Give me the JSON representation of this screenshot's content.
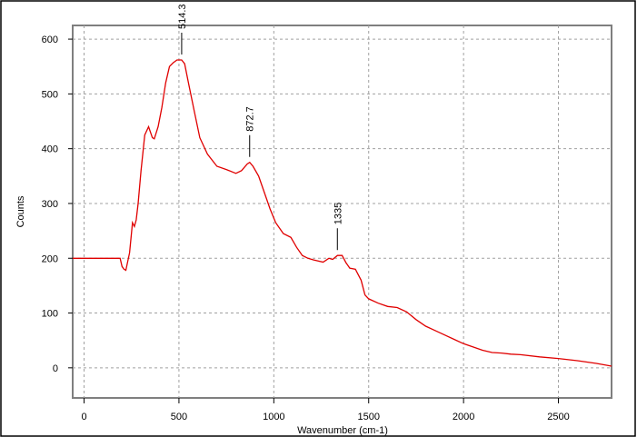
{
  "colors": {
    "line": "#e00000",
    "grid": "#a0a0a0",
    "frame": "#000000",
    "plot_border": "#7f7f7f"
  },
  "chart_data": {
    "type": "line",
    "title": "",
    "xlabel": "Wavenumber (cm-1)",
    "ylabel": "Counts",
    "xlim": [
      -60,
      2780
    ],
    "ylim": [
      -55,
      625
    ],
    "x_ticks": [
      0,
      500,
      1000,
      1500,
      2000,
      2500
    ],
    "x_tick_labels": [
      "0",
      "500",
      "1000",
      "1500",
      "2000",
      "2500"
    ],
    "y_ticks": [
      0,
      100,
      200,
      300,
      400,
      500,
      600
    ],
    "y_tick_labels": [
      "0",
      "100",
      "200",
      "300",
      "400",
      "500",
      "600"
    ],
    "grid": true,
    "series": [
      {
        "x": [
          -60,
          100,
          190,
          200,
          210,
          220,
          240,
          255,
          265,
          275,
          285,
          300,
          320,
          340,
          360,
          370,
          390,
          410,
          430,
          450,
          470,
          490,
          514,
          530,
          550,
          580,
          610,
          650,
          700,
          750,
          800,
          830,
          860,
          873,
          890,
          920,
          950,
          980,
          1010,
          1050,
          1090,
          1120,
          1150,
          1180,
          1210,
          1260,
          1290,
          1310,
          1335,
          1360,
          1380,
          1400,
          1430,
          1460,
          1480,
          1500,
          1550,
          1600,
          1650,
          1700,
          1750,
          1800,
          1850,
          1900,
          1950,
          2000,
          2050,
          2100,
          2150,
          2200,
          2250,
          2300,
          2400,
          2500,
          2600,
          2700,
          2780
        ],
        "y": [
          200,
          200,
          200,
          185,
          180,
          178,
          210,
          265,
          258,
          270,
          300,
          360,
          425,
          440,
          420,
          418,
          440,
          475,
          520,
          550,
          557,
          562,
          562,
          555,
          520,
          470,
          420,
          390,
          368,
          362,
          355,
          360,
          372,
          375,
          368,
          350,
          320,
          290,
          265,
          245,
          238,
          220,
          205,
          200,
          197,
          193,
          200,
          198,
          205,
          205,
          192,
          182,
          180,
          160,
          133,
          126,
          118,
          112,
          110,
          102,
          88,
          76,
          68,
          60,
          52,
          44,
          38,
          32,
          28,
          27,
          25,
          24,
          20,
          17,
          13,
          8,
          3
        ]
      }
    ],
    "annotations": [
      {
        "label": "514.3",
        "x": 514.3,
        "y": 562
      },
      {
        "label": "872.7",
        "x": 872.7,
        "y": 375
      },
      {
        "label": "1335",
        "x": 1335,
        "y": 205
      }
    ]
  }
}
